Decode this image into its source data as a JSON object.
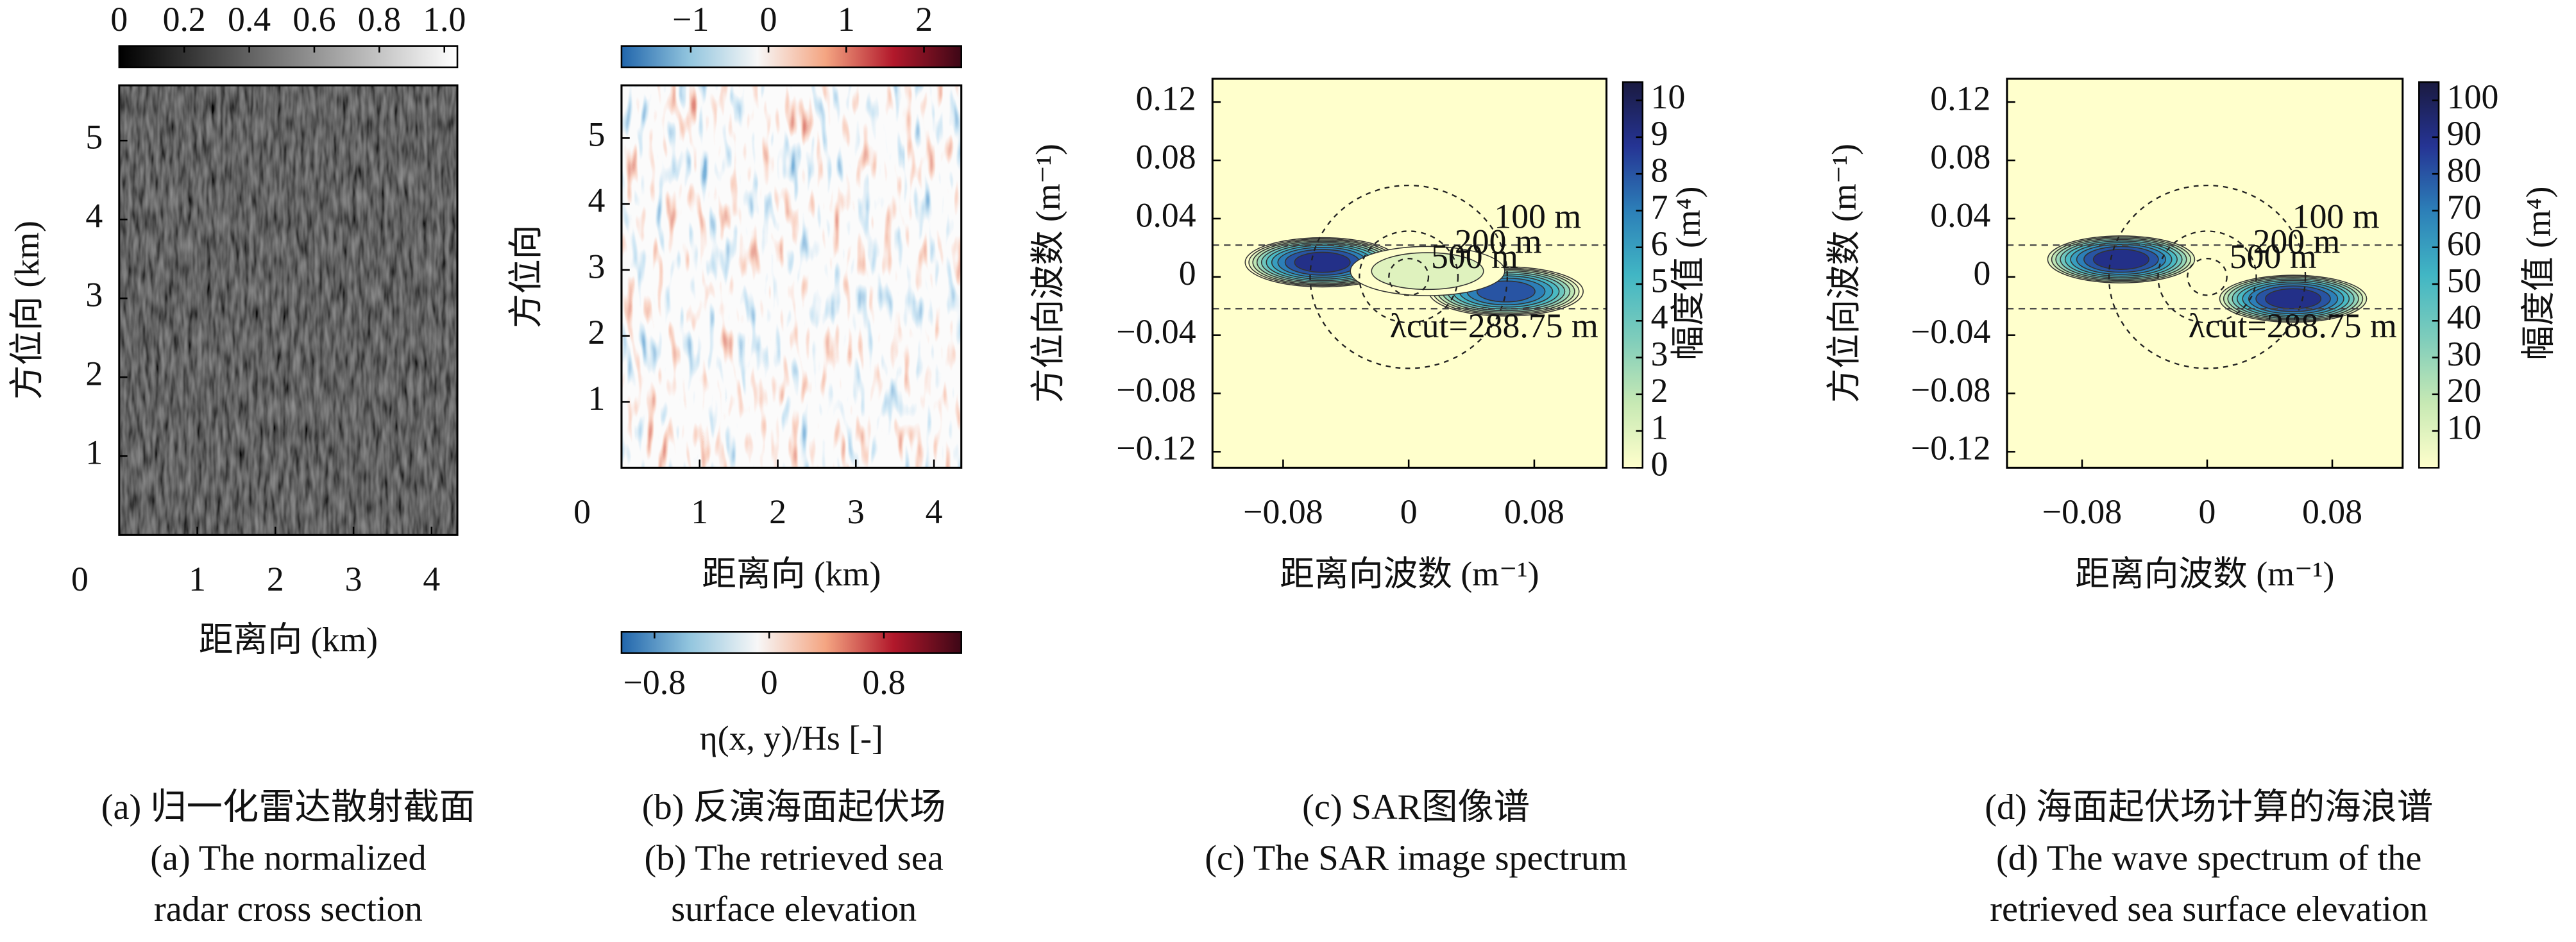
{
  "chart_data": [
    {
      "type": "image",
      "caption": [
        "(a) 归一化雷达散射截面",
        "(a) The normalized",
        "radar cross section"
      ],
      "xlabel": "距离向 (km)",
      "ylabel": "方位向 (km)",
      "xlim": [
        0,
        4.33
      ],
      "ylim": [
        0,
        5.7
      ],
      "xticks": [
        0,
        1,
        2,
        3,
        4
      ],
      "yticks": [
        1,
        2,
        3,
        4,
        5
      ],
      "colorbars": [
        {
          "position": "top",
          "clim": [
            0,
            1.04
          ],
          "ticks": [
            0,
            0.2,
            0.4,
            0.6,
            0.8,
            {
              "value": 1,
              "label": "1.0"
            }
          ],
          "colors": [
            "#000000",
            "#ffffff"
          ]
        }
      ]
    },
    {
      "type": "image",
      "caption": [
        "(b) 反演海面起伏场",
        "(b) The retrieved sea",
        "surface elevation"
      ],
      "xlabel": "距离向 (km)",
      "ylabel": "方位向",
      "xlim": [
        0,
        4.35
      ],
      "ylim": [
        0,
        5.8
      ],
      "xticks": [
        0,
        1,
        2,
        3,
        4
      ],
      "yticks": [
        1,
        2,
        3,
        4,
        5
      ],
      "colorbars": [
        {
          "position": "top",
          "clim": [
            -1.89,
            2.48
          ],
          "ticks": [
            {
              "value": -1,
              "label": "−1"
            },
            0,
            1,
            2
          ],
          "colors": [
            "#2166ac",
            "#92c5de",
            "#f7f7f7",
            "#f4a582",
            "#b2182b",
            "#3d0716"
          ]
        },
        {
          "position": "bottom",
          "clim": [
            -1.03,
            1.34
          ],
          "ticks": [
            {
              "value": -0.8,
              "label": "−0.8"
            },
            0,
            0.8
          ],
          "colors": [
            "#2166ac",
            "#92c5de",
            "#f7f7f7",
            "#f4a582",
            "#b2182b",
            "#3d0716"
          ],
          "label": "η(x, y)/Hs [-]"
        }
      ]
    },
    {
      "type": "contour",
      "caption": [
        "(c) SAR图像谱",
        "(c) The SAR image spectrum"
      ],
      "xlabel": "距离向波数 (m⁻¹)",
      "ylabel": "方位向波数 (m⁻¹)",
      "xlim": [
        -0.125,
        0.126
      ],
      "ylim": [
        -0.131,
        0.136
      ],
      "xticks": [
        {
          "value": -0.08,
          "label": "−0.08"
        },
        0,
        0.08
      ],
      "yticks": [
        {
          "value": -0.12,
          "label": "−0.12"
        },
        {
          "value": -0.08,
          "label": "−0.08"
        },
        {
          "value": -0.04,
          "label": "−0.04"
        },
        0,
        0.04,
        0.08,
        0.12
      ],
      "circles": [
        {
          "label": "100 m",
          "radius": 0.0628
        },
        {
          "label": "200 m",
          "radius": 0.0314
        },
        {
          "label": "500 m",
          "radius": 0.0126
        }
      ],
      "cut": {
        "label": "λcut=288.75 m",
        "value": 0.0218
      },
      "peaks": [
        {
          "x": -0.055,
          "y": 0.01,
          "value": 10
        },
        {
          "x": 0.062,
          "y": -0.01,
          "value": 9
        },
        {
          "x": 0.012,
          "y": 0.004,
          "value": 2
        }
      ],
      "colorbars": [
        {
          "position": "right",
          "clim": [
            0,
            10.5
          ],
          "ticks": [
            0,
            1,
            2,
            3,
            4,
            5,
            6,
            7,
            8,
            9,
            10
          ],
          "colors": [
            "#ffffcc",
            "#c7e9b4",
            "#7fcdbb",
            "#41b6c4",
            "#2c7fb8",
            "#253494",
            "#1a1a40"
          ],
          "label": "幅度值 (m⁴)"
        }
      ]
    },
    {
      "type": "contour",
      "caption": [
        "(d) 海面起伏场计算的海浪谱",
        "(d) The wave spectrum of the",
        "retrieved sea surface elevation"
      ],
      "xlabel": "距离向波数 (m⁻¹)",
      "ylabel": "方位向波数 (m⁻¹)",
      "xlim": [
        -0.128,
        0.125
      ],
      "ylim": [
        -0.131,
        0.136
      ],
      "xticks": [
        {
          "value": -0.08,
          "label": "−0.08"
        },
        0,
        0.08
      ],
      "yticks": [
        {
          "value": -0.12,
          "label": "−0.12"
        },
        {
          "value": -0.08,
          "label": "−0.08"
        },
        {
          "value": -0.04,
          "label": "−0.04"
        },
        0,
        0.04,
        0.08,
        0.12
      ],
      "circles": [
        {
          "label": "100 m",
          "radius": 0.0628
        },
        {
          "label": "200 m",
          "radius": 0.0314
        },
        {
          "label": "500 m",
          "radius": 0.0126
        }
      ],
      "cut": {
        "label": "λcut=288.75 m",
        "value": 0.0218
      },
      "peaks": [
        {
          "x": -0.055,
          "y": 0.012,
          "value": 100
        },
        {
          "x": 0.055,
          "y": -0.015,
          "value": 100
        }
      ],
      "colorbars": [
        {
          "position": "right",
          "clim": [
            0,
            105
          ],
          "ticks": [
            10,
            20,
            30,
            40,
            50,
            60,
            70,
            80,
            90,
            100
          ],
          "colors": [
            "#ffffcc",
            "#c7e9b4",
            "#7fcdbb",
            "#41b6c4",
            "#2c7fb8",
            "#253494",
            "#1a1a40"
          ],
          "label": "幅度值 (m⁴)"
        }
      ]
    }
  ]
}
